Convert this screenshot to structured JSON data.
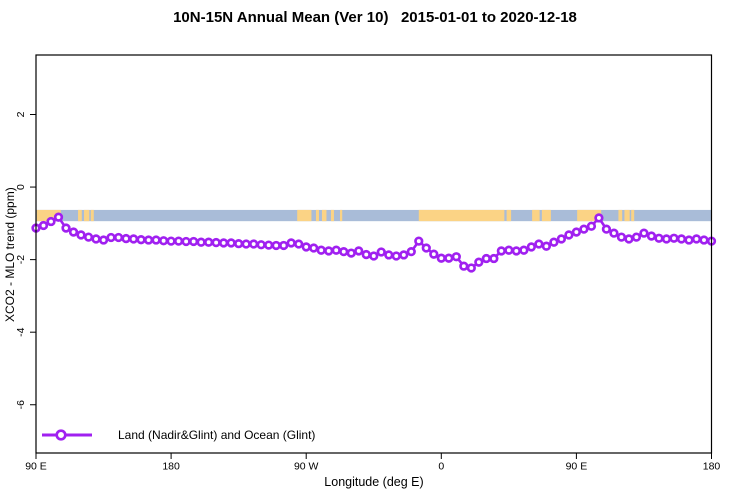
{
  "title": "10N-15N Annual Mean (Ver 10)   2015-01-01 to 2020-12-18",
  "legend": {
    "label": "Land (Nadir&Glint) and Ocean (Glint)"
  },
  "colors": {
    "series": "#A020F0",
    "marker_fill": "#ffffff",
    "band_ocean": "#A9BCD8",
    "band_land": "#FBD385",
    "axis": "#000000"
  },
  "chart_data": {
    "type": "line",
    "title": "10N-15N Annual Mean (Ver 10)   2015-01-01 to 2020-12-18",
    "xlabel": "Longitude (deg E)",
    "ylabel": "XCO2 - MLO trend (ppm)",
    "xlim": [
      90,
      540
    ],
    "ylim": [
      -7.33,
      3.64
    ],
    "grid": false,
    "legend_position": "bottom-left",
    "x_ticks": [
      {
        "value": 90,
        "label": "90 E"
      },
      {
        "value": 180,
        "label": "180"
      },
      {
        "value": 270,
        "label": "90 W"
      },
      {
        "value": 360,
        "label": "0"
      },
      {
        "value": 450,
        "label": "90 E"
      },
      {
        "value": 540,
        "label": "180"
      }
    ],
    "y_ticks": [
      {
        "value": 2,
        "label": "2"
      },
      {
        "value": 0,
        "label": "0"
      },
      {
        "value": -2,
        "label": "-2"
      },
      {
        "value": -4,
        "label": "-4"
      },
      {
        "value": -6,
        "label": "-6"
      }
    ],
    "map_band": {
      "y_top": -0.63,
      "y_bottom": -0.94,
      "land_segments": [
        [
          90.5,
          106.5
        ],
        [
          118,
          120.5
        ],
        [
          122,
          125.5
        ],
        [
          126.5,
          128.5
        ],
        [
          264,
          273.5
        ],
        [
          276.5,
          278.5
        ],
        [
          280.5,
          283.5
        ],
        [
          286.5,
          288.5
        ],
        [
          292.5,
          294
        ],
        [
          345,
          402
        ],
        [
          403.5,
          406.5
        ],
        [
          420.5,
          425.5
        ],
        [
          427,
          433
        ],
        [
          450.5,
          466.5
        ],
        [
          478,
          480.5
        ],
        [
          482,
          485.5
        ],
        [
          486.5,
          488.5
        ]
      ]
    },
    "series": [
      {
        "name": "Land (Nadir&Glint) and Ocean (Glint)",
        "x": [
          90,
          95,
          100,
          105,
          110,
          115,
          120,
          125,
          130,
          135,
          140,
          145,
          150,
          155,
          160,
          165,
          170,
          175,
          180,
          185,
          190,
          195,
          200,
          205,
          210,
          215,
          220,
          225,
          230,
          235,
          240,
          245,
          250,
          255,
          260,
          265,
          270,
          275,
          280,
          285,
          290,
          295,
          300,
          305,
          310,
          315,
          320,
          325,
          330,
          335,
          340,
          345,
          350,
          355,
          360,
          365,
          370,
          375,
          380,
          385,
          390,
          395,
          400,
          405,
          410,
          415,
          420,
          425,
          430,
          435,
          440,
          445,
          450,
          455,
          460,
          465,
          470,
          475,
          480,
          485,
          490,
          495,
          500,
          505,
          510,
          515,
          520,
          525,
          530,
          535,
          540
        ],
        "y": [
          -1.13,
          -1.06,
          -0.95,
          -0.83,
          -1.13,
          -1.24,
          -1.32,
          -1.38,
          -1.43,
          -1.46,
          -1.39,
          -1.39,
          -1.42,
          -1.43,
          -1.45,
          -1.46,
          -1.46,
          -1.48,
          -1.49,
          -1.49,
          -1.5,
          -1.5,
          -1.52,
          -1.52,
          -1.53,
          -1.54,
          -1.54,
          -1.56,
          -1.57,
          -1.57,
          -1.59,
          -1.6,
          -1.61,
          -1.61,
          -1.54,
          -1.57,
          -1.65,
          -1.68,
          -1.74,
          -1.76,
          -1.74,
          -1.78,
          -1.82,
          -1.76,
          -1.86,
          -1.9,
          -1.79,
          -1.87,
          -1.9,
          -1.87,
          -1.78,
          -1.49,
          -1.68,
          -1.85,
          -1.96,
          -1.96,
          -1.92,
          -2.18,
          -2.23,
          -2.07,
          -1.97,
          -1.97,
          -1.76,
          -1.74,
          -1.76,
          -1.74,
          -1.65,
          -1.57,
          -1.63,
          -1.52,
          -1.43,
          -1.32,
          -1.24,
          -1.16,
          -1.08,
          -0.85,
          -1.16,
          -1.27,
          -1.38,
          -1.43,
          -1.38,
          -1.27,
          -1.35,
          -1.41,
          -1.43,
          -1.41,
          -1.43,
          -1.46,
          -1.43,
          -1.46,
          -1.49
        ]
      }
    ]
  }
}
